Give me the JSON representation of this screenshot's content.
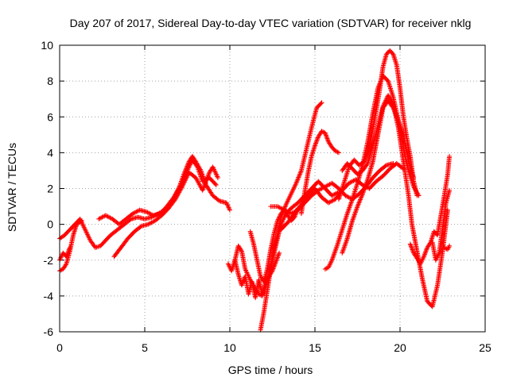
{
  "chart_data": {
    "type": "scatter",
    "title": "Day 207 of 2017, Sidereal Day-to-day VTEC variation (SDTVAR) for receiver nklg",
    "xlabel": "GPS time / hours",
    "ylabel": "SDTVAR / TECUs",
    "xlim": [
      0,
      25
    ],
    "ylim": [
      -6,
      10
    ],
    "xticks": [
      0,
      5,
      10,
      15,
      20,
      25
    ],
    "yticks": [
      -6,
      -4,
      -2,
      0,
      2,
      4,
      6,
      8,
      10
    ],
    "grid": true,
    "marker": "+",
    "series_color": "#ff0000",
    "series": [
      {
        "x": [
          0,
          0.3,
          0.6,
          0.9,
          1.2,
          1.5,
          1.8,
          2.1,
          2.4,
          2.7,
          3.0,
          3.4,
          3.8,
          4.2,
          4.6,
          5.0,
          5.4,
          5.8,
          6.2,
          6.6,
          7.0,
          7.3,
          7.6,
          7.8,
          8.0,
          8.3,
          8.6,
          9.0,
          9.4,
          9.8,
          10.0
        ],
        "y": [
          -0.8,
          -0.6,
          -0.3,
          0.0,
          0.3,
          -0.3,
          -0.9,
          -1.3,
          -1.2,
          -0.9,
          -0.6,
          -0.3,
          0.0,
          0.3,
          0.4,
          0.3,
          0.4,
          0.6,
          0.8,
          1.2,
          2.0,
          2.8,
          3.5,
          3.8,
          3.5,
          3.0,
          2.2,
          1.6,
          1.3,
          1.2,
          0.8
        ]
      },
      {
        "x": [
          0,
          0.2,
          0.4,
          0.6,
          0.8,
          1.0,
          1.3
        ],
        "y": [
          -2.6,
          -2.5,
          -2.2,
          -1.5,
          -0.6,
          0.0,
          0.2
        ]
      },
      {
        "x": [
          0,
          0.2,
          0.4,
          0.6
        ],
        "y": [
          -2.0,
          -1.6,
          -1.8,
          -1.3
        ]
      },
      {
        "x": [
          2.3,
          2.7,
          3.1,
          3.5,
          3.9,
          4.3,
          4.7,
          5.1,
          5.5,
          5.9,
          6.3,
          6.7,
          7.1,
          7.5,
          7.8,
          8.1,
          8.4,
          8.8,
          9.2
        ],
        "y": [
          0.3,
          0.5,
          0.3,
          0.0,
          0.3,
          0.6,
          0.8,
          0.7,
          0.5,
          0.6,
          1.0,
          1.5,
          2.2,
          3.0,
          3.6,
          3.2,
          2.4,
          2.6,
          2.2
        ]
      },
      {
        "x": [
          3.2,
          3.6,
          4.0,
          4.4,
          4.8,
          5.2,
          5.6,
          6.0,
          6.4,
          6.8,
          7.2,
          7.6,
          8.0,
          8.4,
          8.8,
          9.0,
          9.3
        ],
        "y": [
          -1.8,
          -1.3,
          -0.8,
          -0.4,
          -0.1,
          0.0,
          0.2,
          0.5,
          0.9,
          1.4,
          2.1,
          2.9,
          2.6,
          1.9,
          2.9,
          3.2,
          2.6
        ]
      },
      {
        "x": [
          9.9,
          10.1,
          10.3,
          10.5,
          10.7,
          10.9,
          11.1,
          11.3,
          11.5,
          11.7,
          11.9,
          12.1,
          12.3,
          12.5,
          12.7,
          12.9
        ],
        "y": [
          -2.2,
          -2.6,
          -2.0,
          -2.8,
          -3.4,
          -2.9,
          -3.9,
          -3.2,
          -4.1,
          -3.1,
          -3.9,
          -3.2,
          -2.9,
          -2.6,
          -2.1,
          -1.6
        ]
      },
      {
        "x": [
          10.3,
          10.5,
          10.7,
          10.9,
          11.1,
          11.3,
          11.5,
          11.7,
          11.9,
          12.1,
          12.3,
          12.5,
          12.7,
          12.9,
          13.1,
          13.3,
          13.6,
          14.0,
          14.4,
          14.8,
          15.2,
          15.6,
          16.0,
          16.4
        ],
        "y": [
          -2.0,
          -1.2,
          -1.5,
          -2.5,
          -2.9,
          -3.3,
          -3.6,
          -3.9,
          -4.0,
          -3.5,
          -2.8,
          -2.0,
          -1.2,
          -0.4,
          0.2,
          0.6,
          0.9,
          1.2,
          1.6,
          2.0,
          2.4,
          2.0,
          1.6,
          1.8
        ]
      },
      {
        "x": [
          11.8,
          12.0,
          12.2,
          12.4,
          12.6,
          12.8,
          13.0,
          13.3,
          13.6,
          13.9,
          14.2,
          14.5,
          14.8,
          15.1,
          15.4
        ],
        "y": [
          -5.9,
          -4.9,
          -3.7,
          -2.5,
          -1.3,
          -0.6,
          0.4,
          1.1,
          1.7,
          2.3,
          3.0,
          4.2,
          5.4,
          6.5,
          6.8
        ]
      },
      {
        "x": [
          11.2,
          11.4,
          11.6,
          11.8,
          12.0,
          12.2,
          12.4,
          12.6,
          12.8,
          13.0,
          13.2,
          13.4,
          13.6,
          13.8,
          14.0
        ],
        "y": [
          -0.4,
          -1.1,
          -2.0,
          -2.9,
          -3.2,
          -2.5,
          -1.4,
          -0.5,
          0.2,
          0.6,
          0.8,
          0.5,
          0.2,
          0.4,
          0.9
        ]
      },
      {
        "x": [
          12.4,
          12.8,
          13.2,
          13.6,
          14.0,
          14.4,
          14.8,
          15.2,
          15.6,
          16.0,
          16.4,
          16.8,
          17.2,
          17.6,
          18.0,
          18.4,
          18.8,
          19.2,
          19.6
        ],
        "y": [
          1.0,
          1.0,
          0.8,
          0.6,
          0.8,
          1.2,
          1.6,
          1.9,
          2.1,
          2.3,
          2.0,
          1.6,
          1.4,
          1.7,
          2.1,
          2.6,
          3.0,
          3.3,
          3.4
        ]
      },
      {
        "x": [
          13.0,
          13.4,
          13.8,
          14.2,
          14.6,
          15.0,
          15.4,
          15.8,
          16.2,
          16.6,
          17.0,
          17.4,
          17.8,
          18.2,
          18.6,
          19.0,
          19.4,
          19.8,
          20.2
        ],
        "y": [
          -0.3,
          0.1,
          0.6,
          1.1,
          1.6,
          2.0,
          1.5,
          1.2,
          1.4,
          1.9,
          2.3,
          2.5,
          2.2,
          2.0,
          2.4,
          2.7,
          3.1,
          3.4,
          3.1
        ]
      },
      {
        "x": [
          14.2,
          14.4,
          14.6,
          14.8,
          15.0,
          15.2,
          15.4,
          15.6,
          15.8,
          16.0,
          16.2,
          16.4
        ],
        "y": [
          0.6,
          1.8,
          2.9,
          3.8,
          4.4,
          4.9,
          5.2,
          5.1,
          4.6,
          4.3,
          4.1,
          4.0
        ]
      },
      {
        "x": [
          15.6,
          15.8,
          16.0,
          16.3,
          16.6,
          16.9,
          17.2,
          17.5,
          17.8,
          18.1,
          18.4,
          18.7,
          19.0,
          19.3,
          19.6,
          19.9,
          20.2,
          20.5,
          20.8,
          21.1
        ],
        "y": [
          -2.5,
          -2.4,
          -2.0,
          -1.2,
          -0.3,
          0.6,
          1.4,
          2.3,
          3.3,
          4.6,
          6.2,
          7.6,
          8.3,
          8.0,
          7.1,
          5.8,
          4.2,
          3.0,
          2.1,
          1.6
        ]
      },
      {
        "x": [
          16.6,
          16.9,
          17.2,
          17.5,
          17.8,
          18.1,
          18.4,
          18.7,
          19.0,
          19.3,
          19.6,
          19.9,
          20.2,
          20.5,
          20.8
        ],
        "y": [
          -1.6,
          -0.8,
          0.2,
          1.0,
          1.7,
          2.5,
          3.5,
          5.0,
          6.5,
          6.9,
          6.5,
          5.8,
          5.0,
          3.5,
          2.6
        ]
      },
      {
        "x": [
          16.4,
          16.7,
          17.0,
          17.3,
          17.6,
          17.9,
          18.2,
          18.5,
          18.8,
          19.0,
          19.2,
          19.4,
          19.6,
          19.8,
          20.0,
          20.2,
          20.4,
          20.6,
          20.8,
          21.0
        ],
        "y": [
          1.4,
          2.3,
          3.2,
          3.6,
          3.3,
          3.5,
          4.3,
          5.8,
          7.5,
          8.8,
          9.5,
          9.7,
          9.5,
          8.9,
          7.6,
          6.0,
          4.8,
          3.8,
          2.4,
          1.6
        ]
      },
      {
        "x": [
          16.6,
          16.9,
          17.2,
          17.5,
          17.8,
          18.1,
          18.4,
          18.7,
          19.0,
          19.3,
          19.6,
          19.9,
          20.2,
          20.5,
          20.7,
          21.0,
          21.3,
          21.6,
          21.9,
          22.2,
          22.5,
          22.8
        ],
        "y": [
          3.0,
          3.4,
          3.1,
          2.8,
          3.0,
          3.4,
          4.4,
          5.5,
          6.6,
          7.2,
          6.7,
          5.4,
          3.5,
          1.6,
          0.0,
          -1.5,
          -3.0,
          -4.3,
          -4.6,
          -3.4,
          -1.5,
          0.8
        ]
      },
      {
        "x": [
          20.6,
          20.8,
          21.0,
          21.2,
          21.4,
          21.6,
          21.8,
          22.0,
          22.2,
          22.4,
          22.6,
          22.8,
          22.9
        ],
        "y": [
          -1.1,
          -1.6,
          -1.9,
          -2.2,
          -1.8,
          -1.3,
          -1.0,
          -0.4,
          -0.6,
          0.5,
          1.6,
          2.8,
          3.8
        ]
      },
      {
        "x": [
          21.9,
          22.1,
          22.3,
          22.5,
          22.7,
          22.9
        ],
        "y": [
          -1.0,
          -2.0,
          -1.6,
          -0.2,
          1.2,
          1.9
        ]
      },
      {
        "x": [
          22.6,
          22.8,
          22.9
        ],
        "y": [
          -1.3,
          -1.4,
          -1.2
        ]
      }
    ]
  }
}
